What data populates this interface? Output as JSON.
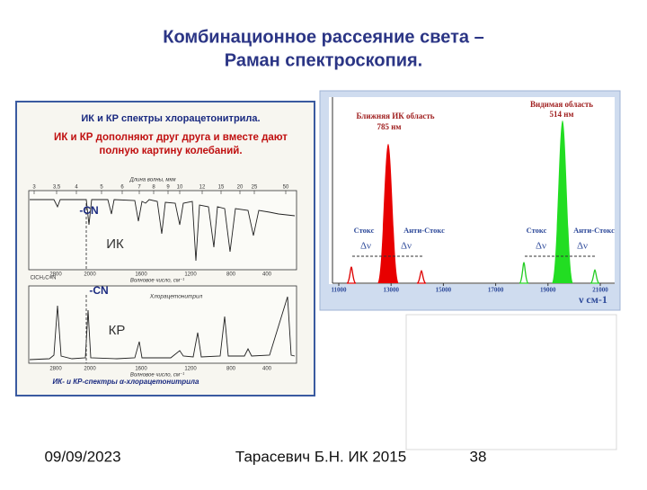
{
  "title": {
    "lines": [
      "Комбинационное рассеяние света –",
      "Раман спектроскопия."
    ]
  },
  "left_figure": {
    "heading": "ИК и КР спектры хлорацетонитрила.",
    "note_lines": [
      "ИК и КР дополняют друг друга и вместе дают",
      "полную картину колебаний."
    ],
    "ir": {
      "group": "-CN",
      "label": "ИК",
      "formula": "ClCH₂C≡N",
      "wavelength_axis": "Длина волны, мкм",
      "wavelength_ticks": [
        "3",
        "3,5",
        "4",
        "5",
        "6",
        "7",
        "8",
        "9",
        "10",
        "12",
        "15",
        "20",
        "25",
        "50"
      ],
      "wavenumber_axis": "Волновое число, см⁻¹",
      "wavenumber_ticks": [
        "2800",
        "2000",
        "1600",
        "1200",
        "800",
        "400"
      ]
    },
    "raman": {
      "group": "-CN",
      "label": "КР",
      "compound": "Хлорацетонитрил",
      "wavenumber_axis": "Волновое число, см⁻¹",
      "wavenumber_ticks": [
        "2800",
        "2000",
        "1600",
        "1200",
        "800",
        "400"
      ]
    },
    "caption": "ИК- и КР-спектры α-хлорацетонитрила"
  },
  "right_figure": {
    "nir_label": [
      "Ближняя ИК область",
      "785 нм"
    ],
    "vis_label": [
      "Видимая область",
      "514 нм"
    ],
    "left_pair": {
      "stokes": "Стокс",
      "anti_stokes": "Анти-Стокс",
      "shift": [
        "Δν",
        "Δν"
      ]
    },
    "right_pair": {
      "stokes": "Стокс",
      "anti_stokes": "Анти-Стокс",
      "shift": [
        "Δν",
        "Δν"
      ]
    },
    "x_ticks": [
      "11000",
      "13000",
      "15000",
      "17000",
      "19000",
      "21000"
    ],
    "x_unit": "ν см-1"
  },
  "footer": {
    "date": "09/09/2023",
    "author": "Тарасевич Б.Н.  ИК 2015",
    "page": "38"
  }
}
